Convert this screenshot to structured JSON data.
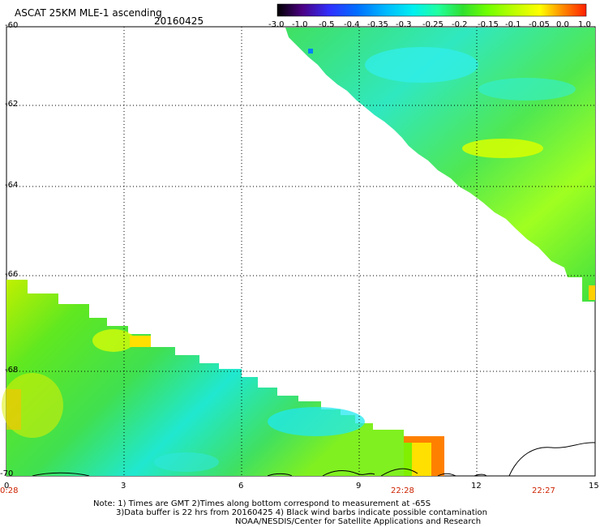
{
  "header": {
    "title": "ASCAT 25KM MLE-1 ascending",
    "date": "20160425"
  },
  "colorbar": {
    "labels": [
      "-3.0",
      "-1.0",
      "-0.5",
      "-0.4",
      "-0.35",
      "-0.3",
      "-0.25",
      "-0.2",
      "-0.15",
      "-0.1",
      "-0.05",
      "0.0",
      "1.0"
    ],
    "colors": [
      "#000000",
      "#4b0082",
      "#4040ff",
      "#0070ff",
      "#00b0ff",
      "#00e8ff",
      "#20ff80",
      "#40e040",
      "#80ff00",
      "#c0ff00",
      "#ffff00",
      "#ff8000",
      "#ff2000"
    ]
  },
  "axes": {
    "x_ticks": [
      "0",
      "3",
      "6",
      "9",
      "12",
      "15"
    ],
    "y_ticks": [
      "-60",
      "-62",
      "-64",
      "-66",
      "-68",
      "-70"
    ],
    "time_labels": [
      "0:28",
      "22:28",
      "22:27"
    ]
  },
  "notes": {
    "line1": "Note: 1) Times are GMT 2)Times along bottom correspond to measurement at -65S",
    "line2": "3)Data buffer is 22 hrs from 20160425 4) Black wind barbs indicate possible contamination",
    "line3": "NOAA/NESDIS/Center for Satellite Applications and Research"
  }
}
